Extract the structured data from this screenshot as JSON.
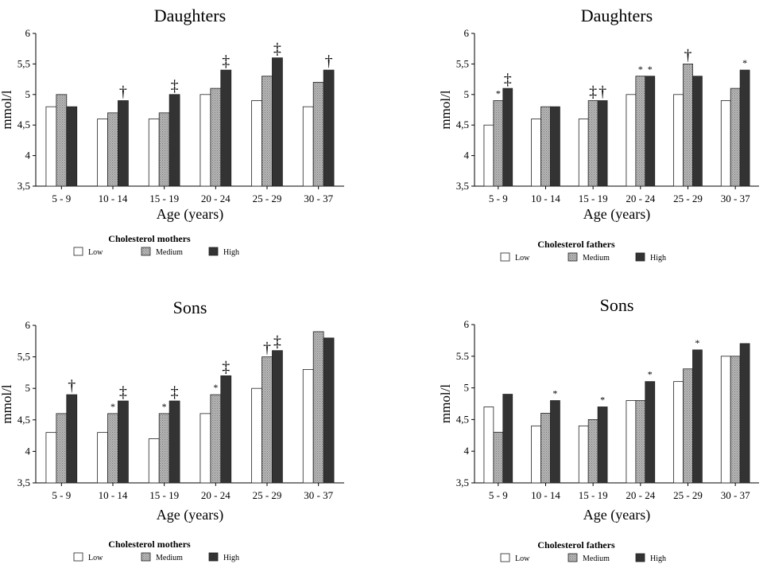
{
  "chart_data": [
    {
      "type": "bar",
      "title": "Daughters",
      "xlabel": "Age (years)",
      "ylabel": "mmol/l",
      "ylim": [
        3.5,
        6
      ],
      "yticks": [
        "3,5",
        "4",
        "4,5",
        "5",
        "5,5",
        "6"
      ],
      "categories": [
        "5 - 9",
        "10 - 14",
        "15 - 19",
        "20 - 24",
        "25 - 29",
        "30 - 37"
      ],
      "legend_title": "Cholesterol mothers",
      "series": [
        {
          "name": "Low",
          "values": [
            4.8,
            4.6,
            4.6,
            5.0,
            4.9,
            4.8
          ]
        },
        {
          "name": "Medium",
          "values": [
            5.0,
            4.7,
            4.7,
            5.1,
            5.3,
            5.2
          ]
        },
        {
          "name": "High",
          "values": [
            4.8,
            4.9,
            5.0,
            5.4,
            5.6,
            5.4
          ]
        }
      ],
      "annotations": [
        {
          "category": 1,
          "series": 2,
          "text": "†"
        },
        {
          "category": 2,
          "series": 2,
          "text": "‡"
        },
        {
          "category": 3,
          "series": 2,
          "text": "‡"
        },
        {
          "category": 4,
          "series": 2,
          "text": "‡"
        },
        {
          "category": 5,
          "series": 2,
          "text": "†"
        }
      ]
    },
    {
      "type": "bar",
      "title": "Daughters",
      "xlabel": "Age (years)",
      "ylabel": "mmol/l",
      "ylim": [
        3.5,
        6
      ],
      "yticks": [
        "3,5",
        "4",
        "4,5",
        "5",
        "5,5",
        "6"
      ],
      "categories": [
        "5 - 9",
        "10 - 14",
        "15 - 19",
        "20 - 24",
        "25 - 29",
        "30 - 37"
      ],
      "legend_title": "Cholesterol fathers",
      "series": [
        {
          "name": "Low",
          "values": [
            4.5,
            4.6,
            4.6,
            5.0,
            5.0,
            4.9
          ]
        },
        {
          "name": "Medium",
          "values": [
            4.9,
            4.8,
            4.9,
            5.3,
            5.5,
            5.1
          ]
        },
        {
          "name": "High",
          "values": [
            5.1,
            4.8,
            4.9,
            5.3,
            5.3,
            5.4
          ]
        }
      ],
      "annotations": [
        {
          "category": 0,
          "series": 1,
          "text": "*"
        },
        {
          "category": 0,
          "series": 2,
          "text": "‡"
        },
        {
          "category": 2,
          "series": 1,
          "text": "‡"
        },
        {
          "category": 2,
          "series": 2,
          "text": "†"
        },
        {
          "category": 3,
          "series": 1,
          "text": "*"
        },
        {
          "category": 3,
          "series": 2,
          "text": "*"
        },
        {
          "category": 4,
          "series": 1,
          "text": "†"
        },
        {
          "category": 5,
          "series": 2,
          "text": "*"
        }
      ]
    },
    {
      "type": "bar",
      "title": "Sons",
      "xlabel": "Age (years)",
      "ylabel": "mmol/l",
      "ylim": [
        3.5,
        6
      ],
      "yticks": [
        "3,5",
        "4",
        "4,5",
        "5",
        "5,5",
        "6"
      ],
      "categories": [
        "5 - 9",
        "10 - 14",
        "15 - 19",
        "20 - 24",
        "25 - 29",
        "30 - 37"
      ],
      "legend_title": "Cholesterol mothers",
      "series": [
        {
          "name": "Low",
          "values": [
            4.3,
            4.3,
            4.2,
            4.6,
            5.0,
            5.3
          ]
        },
        {
          "name": "Medium",
          "values": [
            4.6,
            4.6,
            4.6,
            4.9,
            5.5,
            5.9
          ]
        },
        {
          "name": "High",
          "values": [
            4.9,
            4.8,
            4.8,
            5.2,
            5.6,
            5.8
          ]
        }
      ],
      "annotations": [
        {
          "category": 0,
          "series": 2,
          "text": "†"
        },
        {
          "category": 1,
          "series": 1,
          "text": "*"
        },
        {
          "category": 1,
          "series": 2,
          "text": "‡"
        },
        {
          "category": 2,
          "series": 1,
          "text": "*"
        },
        {
          "category": 2,
          "series": 2,
          "text": "‡"
        },
        {
          "category": 3,
          "series": 1,
          "text": "*"
        },
        {
          "category": 3,
          "series": 2,
          "text": "‡"
        },
        {
          "category": 4,
          "series": 1,
          "text": "†"
        },
        {
          "category": 4,
          "series": 2,
          "text": "‡"
        }
      ]
    },
    {
      "type": "bar",
      "title": "Sons",
      "xlabel": "Age (years)",
      "ylabel": "mmol/l",
      "ylim": [
        3.5,
        6
      ],
      "yticks": [
        "3,5",
        "4",
        "4,5",
        "5",
        "5.5",
        "6"
      ],
      "categories": [
        "5 - 9",
        "10 - 14",
        "15 - 19",
        "20 - 24",
        "25 - 29",
        "30 - 37"
      ],
      "legend_title": "Cholesterol fathers",
      "series": [
        {
          "name": "Low",
          "values": [
            4.7,
            4.4,
            4.4,
            4.8,
            5.1,
            5.5
          ]
        },
        {
          "name": "Medium",
          "values": [
            4.3,
            4.6,
            4.5,
            4.8,
            5.3,
            5.5
          ]
        },
        {
          "name": "High",
          "values": [
            4.9,
            4.8,
            4.7,
            5.1,
            5.6,
            5.7
          ]
        }
      ],
      "annotations": [
        {
          "category": 1,
          "series": 2,
          "text": "*"
        },
        {
          "category": 2,
          "series": 2,
          "text": "*"
        },
        {
          "category": 3,
          "series": 2,
          "text": "*"
        },
        {
          "category": 4,
          "series": 2,
          "text": "*"
        }
      ]
    }
  ],
  "colors": {
    "Low": "#ffffff",
    "Medium": "#b8b8b8",
    "High": "#333333",
    "axis": "#000000"
  }
}
